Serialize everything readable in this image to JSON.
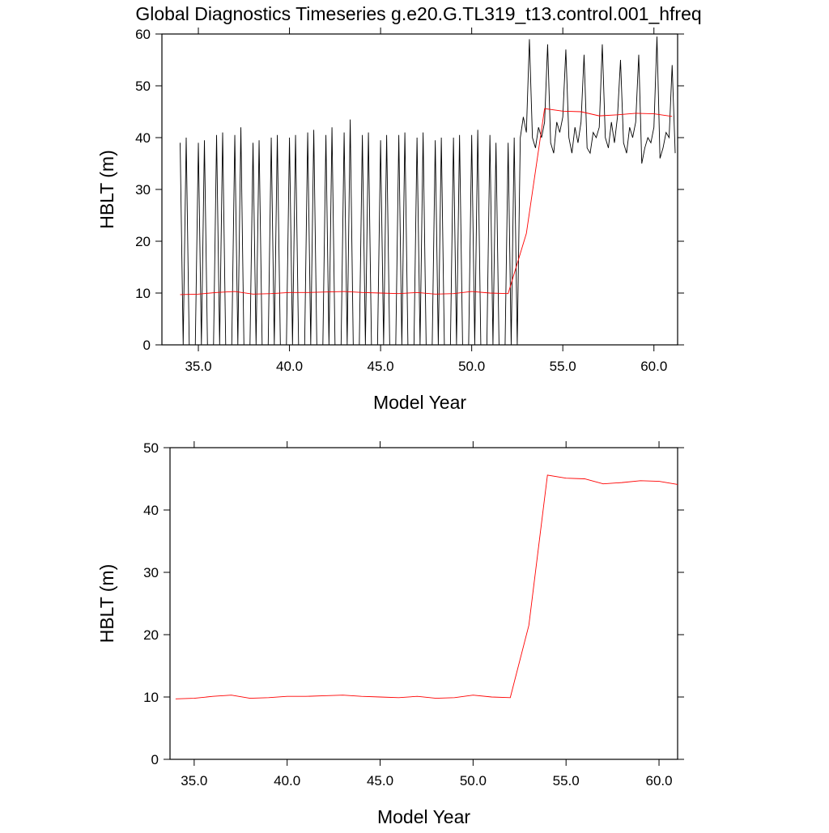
{
  "chart_data": [
    {
      "type": "line",
      "title": "Global Diagnostics Timeseries g.e20.G.TL319_t13.control.001_hfreq",
      "x_label": "Model Year",
      "y_label": "HBLT (m)",
      "xlim": [
        33.0,
        61.3
      ],
      "xticks": [
        {
          "value": 35,
          "label": "35.0"
        },
        {
          "value": 40,
          "label": "40.0"
        },
        {
          "value": 45,
          "label": "45.0"
        },
        {
          "value": 50,
          "label": "50.0"
        },
        {
          "value": 55,
          "label": "55.0"
        },
        {
          "value": 60,
          "label": "60.0"
        }
      ],
      "ylim": [
        0,
        60
      ],
      "yticks": [
        0,
        10,
        20,
        30,
        40,
        50,
        60
      ],
      "series": [
        {
          "color": "#000000",
          "x": [
            34,
            34.167,
            34.333,
            34.5,
            34.667,
            34.833,
            35,
            35.167,
            35.333,
            35.5,
            35.667,
            35.833,
            36,
            36.167,
            36.333,
            36.5,
            36.667,
            36.833,
            37,
            37.167,
            37.333,
            37.5,
            37.667,
            37.833,
            38,
            38.167,
            38.333,
            38.5,
            38.667,
            38.833,
            39,
            39.167,
            39.333,
            39.5,
            39.667,
            39.833,
            40,
            40.167,
            40.333,
            40.5,
            40.667,
            40.833,
            41,
            41.167,
            41.333,
            41.5,
            41.667,
            41.833,
            42,
            42.167,
            42.333,
            42.5,
            42.667,
            42.833,
            43,
            43.167,
            43.333,
            43.5,
            43.667,
            43.833,
            44,
            44.167,
            44.333,
            44.5,
            44.667,
            44.833,
            45,
            45.167,
            45.333,
            45.5,
            45.667,
            45.833,
            46,
            46.167,
            46.333,
            46.5,
            46.667,
            46.833,
            47,
            47.167,
            47.333,
            47.5,
            47.667,
            47.833,
            48,
            48.167,
            48.333,
            48.5,
            48.667,
            48.833,
            49,
            49.167,
            49.333,
            49.5,
            49.667,
            49.833,
            50,
            50.167,
            50.333,
            50.5,
            50.667,
            50.833,
            51,
            51.167,
            51.333,
            51.5,
            51.667,
            51.833,
            52,
            52.167,
            52.333,
            52.5,
            52.667,
            52.833,
            53,
            53.167,
            53.333,
            53.5,
            53.667,
            53.833,
            54,
            54.167,
            54.333,
            54.5,
            54.667,
            54.833,
            55,
            55.167,
            55.333,
            55.5,
            55.667,
            55.833,
            56,
            56.167,
            56.333,
            56.5,
            56.667,
            56.833,
            57,
            57.167,
            57.333,
            57.5,
            57.667,
            57.833,
            58,
            58.167,
            58.333,
            58.5,
            58.667,
            58.833,
            59,
            59.167,
            59.333,
            59.5,
            59.667,
            59.833,
            60,
            60.167,
            60.333,
            60.5,
            60.667,
            60.833,
            61,
            61.167
          ],
          "values": [
            39,
            0,
            40,
            0,
            0,
            0,
            39,
            0,
            39.5,
            0,
            0,
            0,
            40.5,
            0,
            41,
            0,
            0,
            0,
            40.5,
            0,
            42,
            0,
            0,
            0,
            39,
            0,
            39.5,
            0,
            0,
            0,
            40,
            0,
            40.5,
            0,
            0,
            0,
            40,
            0,
            40.5,
            0,
            0,
            0,
            41,
            0,
            41.5,
            0,
            0,
            0,
            40.5,
            0,
            42,
            0,
            0,
            0,
            41,
            0,
            43.5,
            0,
            0,
            0,
            40.5,
            0,
            41,
            0,
            0,
            0,
            39.5,
            0,
            40.5,
            0,
            0,
            0,
            40.5,
            0,
            41,
            0,
            0,
            0,
            40,
            0,
            41,
            0,
            0,
            0,
            39.5,
            0,
            40,
            0,
            0,
            0,
            40,
            0,
            40.5,
            0,
            0,
            0,
            40.5,
            0,
            41.5,
            0,
            0,
            0,
            40.5,
            0,
            39,
            0,
            0,
            0,
            39,
            0,
            40,
            0,
            40,
            44,
            41,
            59,
            40,
            38,
            42,
            40,
            43,
            58,
            39,
            37,
            43,
            41,
            44,
            57,
            40,
            37,
            42,
            39,
            43,
            56,
            38,
            37,
            41,
            40,
            42,
            58,
            40,
            38,
            43,
            39,
            44,
            55,
            39,
            37,
            42,
            40,
            43,
            56,
            35,
            38,
            40,
            39,
            42,
            59.5,
            36,
            38,
            41,
            40,
            54,
            37
          ]
        },
        {
          "color": "#ff0000",
          "x": [
            34,
            35,
            36,
            37,
            38,
            39,
            40,
            41,
            42,
            43,
            44,
            45,
            46,
            47,
            48,
            49,
            50,
            51,
            52,
            53,
            54,
            55,
            56,
            57,
            58,
            59,
            60,
            61
          ],
          "values": [
            9.7,
            9.8,
            10.1,
            10.3,
            9.8,
            9.9,
            10.1,
            10.1,
            10.2,
            10.3,
            10.1,
            10.0,
            9.9,
            10.1,
            9.8,
            9.9,
            10.3,
            10.0,
            9.9,
            21.5,
            45.6,
            45.1,
            45.0,
            44.2,
            44.4,
            44.7,
            44.6,
            44.1
          ]
        }
      ]
    },
    {
      "type": "line",
      "x_label": "Model Year",
      "y_label": "HBLT (m)",
      "xlim": [
        33.7,
        61.0
      ],
      "xticks": [
        {
          "value": 35,
          "label": "35.0"
        },
        {
          "value": 40,
          "label": "40.0"
        },
        {
          "value": 45,
          "label": "45.0"
        },
        {
          "value": 50,
          "label": "50.0"
        },
        {
          "value": 55,
          "label": "55.0"
        },
        {
          "value": 60,
          "label": "60.0"
        }
      ],
      "ylim": [
        0,
        50
      ],
      "yticks": [
        0,
        10,
        20,
        30,
        40,
        50
      ],
      "series": [
        {
          "color": "#ff0000",
          "x": [
            34,
            35,
            36,
            37,
            38,
            39,
            40,
            41,
            42,
            43,
            44,
            45,
            46,
            47,
            48,
            49,
            50,
            51,
            52,
            53,
            54,
            55,
            56,
            57,
            58,
            59,
            60,
            61
          ],
          "values": [
            9.7,
            9.8,
            10.1,
            10.3,
            9.8,
            9.9,
            10.1,
            10.1,
            10.2,
            10.3,
            10.1,
            10.0,
            9.9,
            10.1,
            9.8,
            9.9,
            10.3,
            10.0,
            9.9,
            21.5,
            45.6,
            45.1,
            45.0,
            44.2,
            44.4,
            44.7,
            44.6,
            44.1
          ]
        }
      ]
    }
  ]
}
